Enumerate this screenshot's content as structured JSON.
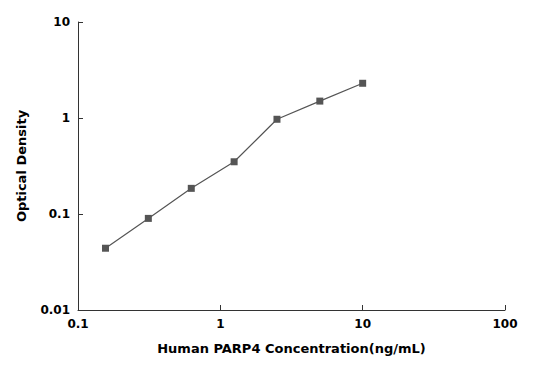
{
  "chart_data": {
    "type": "line",
    "xlabel": "Human PARP4 Concentration(ng/mL)",
    "ylabel": "Optical Density",
    "x": [
      0.156,
      0.312,
      0.625,
      1.25,
      2.5,
      5.0,
      10.0
    ],
    "values": [
      0.044,
      0.09,
      0.185,
      0.35,
      0.97,
      1.5,
      2.3
    ],
    "color": "#555555",
    "marker": "square",
    "log": true,
    "grid": false,
    "xlim": [
      0.1,
      100
    ],
    "ylim": [
      0.01,
      10
    ],
    "xticks": [
      0.1,
      1,
      10,
      100
    ],
    "yticks": [
      0.01,
      0.1,
      1,
      10
    ]
  }
}
